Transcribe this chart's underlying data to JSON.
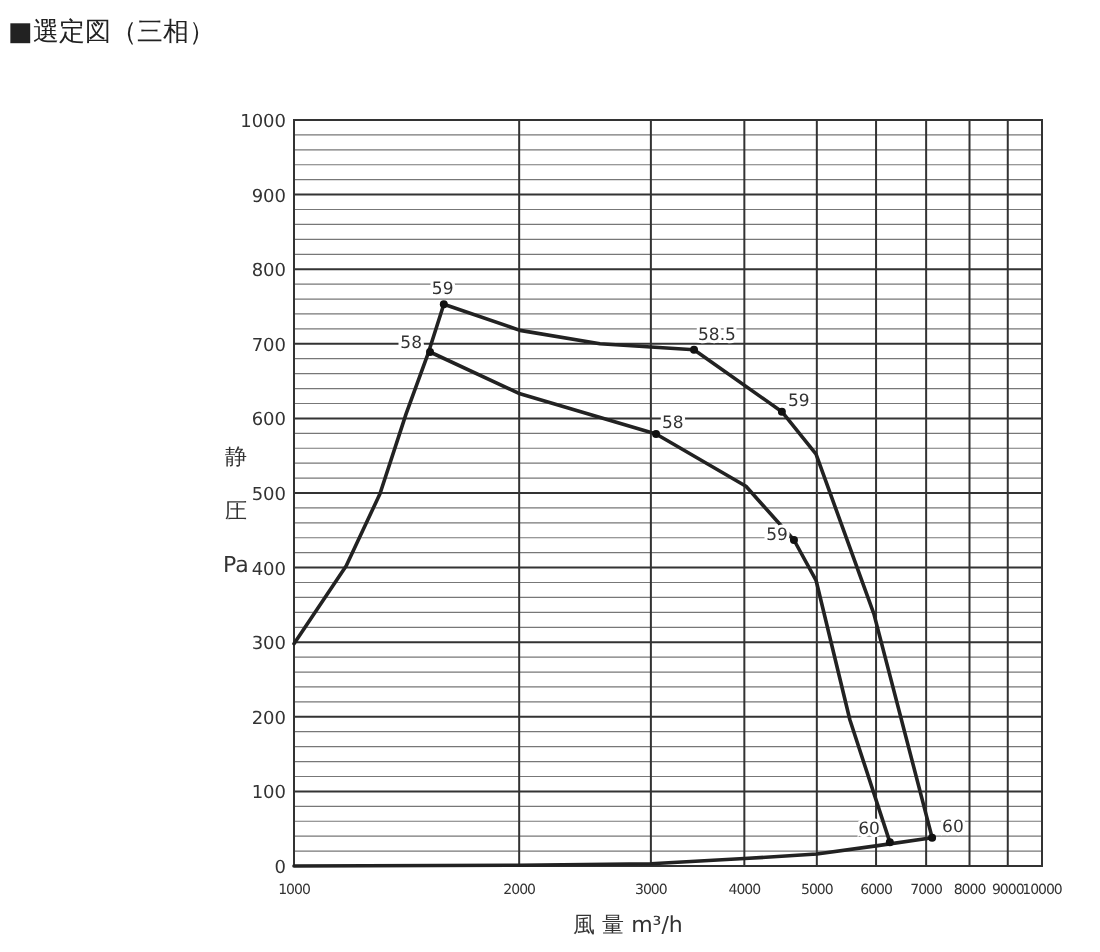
{
  "chart_data": {
    "type": "line",
    "title": "■選定図（三相）",
    "xlabel": "風 量 m³/h",
    "ylabel": "静圧Pa",
    "log": "x",
    "grid": true,
    "line_style": "solid",
    "xlim": [
      1000,
      10000
    ],
    "ylim": [
      0,
      1000
    ],
    "xticks": [
      1000,
      2000,
      3000,
      4000,
      5000,
      6000,
      7000,
      8000,
      9000,
      10000
    ],
    "yticks": [
      0,
      {
        "value": 20,
        "label": null
      },
      {
        "value": 40,
        "label": null
      },
      {
        "value": 60,
        "label": null
      },
      {
        "value": 80,
        "label": null
      },
      100,
      {
        "value": 120,
        "label": null
      },
      {
        "value": 140,
        "label": null
      },
      {
        "value": 160,
        "label": null
      },
      {
        "value": 180,
        "label": null
      },
      200,
      {
        "value": 220,
        "label": null
      },
      {
        "value": 240,
        "label": null
      },
      {
        "value": 260,
        "label": null
      },
      {
        "value": 280,
        "label": null
      },
      300,
      {
        "value": 320,
        "label": null
      },
      {
        "value": 340,
        "label": null
      },
      {
        "value": 360,
        "label": null
      },
      {
        "value": 380,
        "label": null
      },
      400,
      {
        "value": 420,
        "label": null
      },
      {
        "value": 440,
        "label": null
      },
      {
        "value": 460,
        "label": null
      },
      {
        "value": 480,
        "label": null
      },
      500,
      {
        "value": 520,
        "label": null
      },
      {
        "value": 540,
        "label": null
      },
      {
        "value": 560,
        "label": null
      },
      {
        "value": 580,
        "label": null
      },
      600,
      {
        "value": 620,
        "label": null
      },
      {
        "value": 640,
        "label": null
      },
      {
        "value": 660,
        "label": null
      },
      {
        "value": 680,
        "label": null
      },
      700,
      {
        "value": 720,
        "label": null
      },
      {
        "value": 740,
        "label": null
      },
      {
        "value": 760,
        "label": null
      },
      {
        "value": 780,
        "label": null
      },
      800,
      {
        "value": 820,
        "label": null
      },
      {
        "value": 840,
        "label": null
      },
      {
        "value": 860,
        "label": null
      },
      {
        "value": 880,
        "label": null
      },
      900,
      {
        "value": 920,
        "label": null
      },
      {
        "value": 940,
        "label": null
      },
      {
        "value": 960,
        "label": null
      },
      {
        "value": 980,
        "label": null
      },
      1000
    ],
    "series": [
      {
        "color": "#222222",
        "x": [
          1586,
          2005,
          2565,
          3426,
          4490,
          4988,
          5960,
          7130
        ],
        "values": [
          753,
          718,
          700,
          692,
          609,
          552,
          338,
          38
        ]
      },
      {
        "color": "#222222",
        "x": [
          1520,
          2005,
          3048,
          4020,
          4660,
          4988,
          5535,
          6260
        ],
        "values": [
          689,
          633,
          579,
          509,
          437,
          383,
          196,
          32
        ]
      },
      {
        "color": "#222222",
        "x": [
          1000,
          1174,
          1303,
          1412,
          1510,
          1586
        ],
        "values": [
          298,
          402,
          499,
          606,
          686,
          753
        ]
      },
      {
        "color": "#222222",
        "x": [
          1000,
          2000,
          3000,
          4000,
          5000,
          6000,
          7130
        ],
        "values": [
          0,
          1,
          3,
          10,
          16,
          27,
          38
        ]
      }
    ],
    "annotations": [
      {
        "text": "59",
        "x": 1586,
        "y": 753
      },
      {
        "text": "58",
        "x": 1520,
        "y": 689
      },
      {
        "text": "58.5",
        "x": 3426,
        "y": 692
      },
      {
        "text": "59",
        "x": 4490,
        "y": 609
      },
      {
        "text": "58",
        "x": 3048,
        "y": 579
      },
      {
        "text": "59",
        "x": 4660,
        "y": 437
      },
      {
        "text": "60",
        "x": 7130,
        "y": 38
      },
      {
        "text": "60",
        "x": 6260,
        "y": 32
      }
    ]
  }
}
